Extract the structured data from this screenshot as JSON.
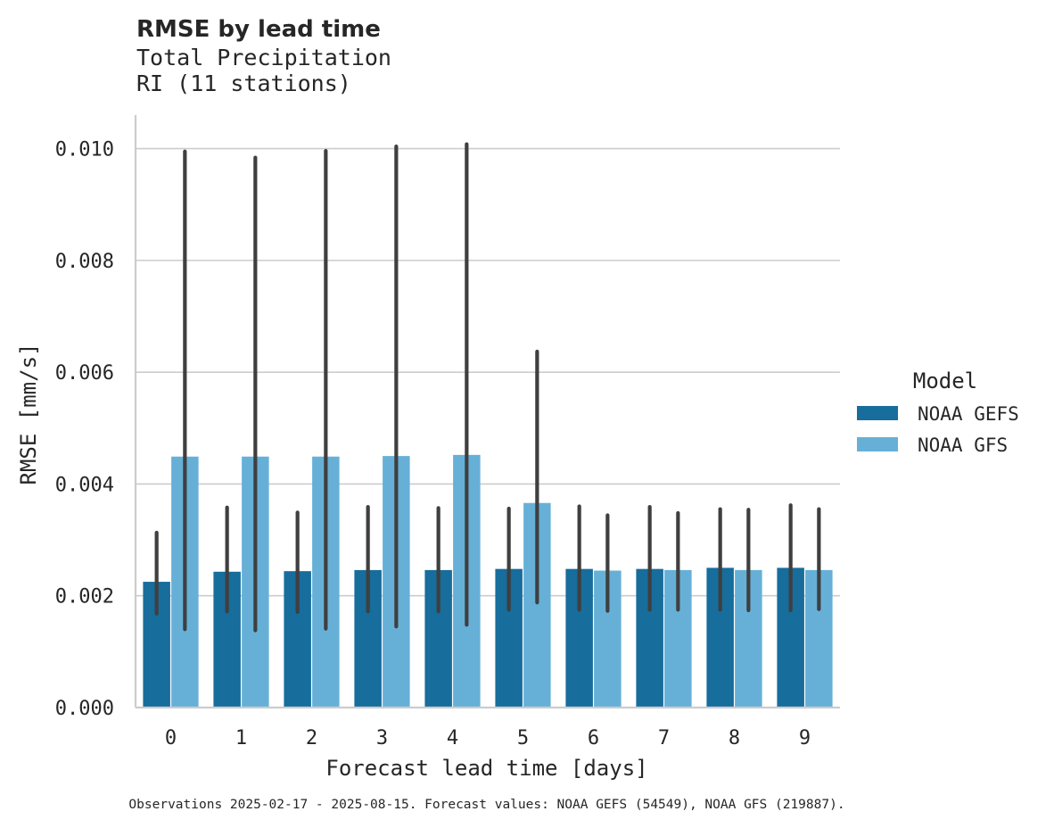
{
  "chart_data": {
    "type": "bar",
    "title": "RMSE by lead time",
    "subtitle_lines": [
      "Total Precipitation",
      "RI (11 stations)"
    ],
    "xlabel": "Forecast lead time [days]",
    "ylabel": "RMSE [mm/s]",
    "categories": [
      "0",
      "1",
      "2",
      "3",
      "4",
      "5",
      "6",
      "7",
      "8",
      "9"
    ],
    "ylim": [
      0,
      0.0106
    ],
    "yticks": [
      0.0,
      0.002,
      0.004,
      0.006,
      0.008,
      0.01
    ],
    "ytick_labels": [
      "0.000",
      "0.002",
      "0.004",
      "0.006",
      "0.008",
      "0.010"
    ],
    "grid": true,
    "legend": {
      "title": "Model",
      "placement": "right"
    },
    "series": [
      {
        "name": "NOAA GEFS",
        "color": "#176d9c",
        "values": [
          0.00225,
          0.00243,
          0.00244,
          0.00246,
          0.00246,
          0.00248,
          0.00248,
          0.00248,
          0.0025,
          0.0025
        ],
        "ci_low": [
          0.00168,
          0.00172,
          0.00171,
          0.00172,
          0.00172,
          0.00175,
          0.00175,
          0.00175,
          0.00175,
          0.00174
        ],
        "ci_high": [
          0.00313,
          0.00358,
          0.00349,
          0.00359,
          0.00357,
          0.00356,
          0.0036,
          0.00359,
          0.00355,
          0.00362
        ]
      },
      {
        "name": "NOAA GFS",
        "color": "#66b0d8",
        "values": [
          0.00449,
          0.00449,
          0.00449,
          0.0045,
          0.00452,
          0.00366,
          0.00245,
          0.00246,
          0.00246,
          0.00246
        ],
        "ci_low": [
          0.0014,
          0.00138,
          0.00141,
          0.00145,
          0.00148,
          0.00188,
          0.00173,
          0.00175,
          0.00174,
          0.00176
        ],
        "ci_high": [
          0.00995,
          0.00984,
          0.00996,
          0.01004,
          0.01008,
          0.00637,
          0.00344,
          0.00348,
          0.00354,
          0.00355
        ]
      }
    ],
    "footnote": "Observations 2025-02-17 - 2025-08-15. Forecast values: NOAA GEFS (54549), NOAA GFS (219887)."
  }
}
